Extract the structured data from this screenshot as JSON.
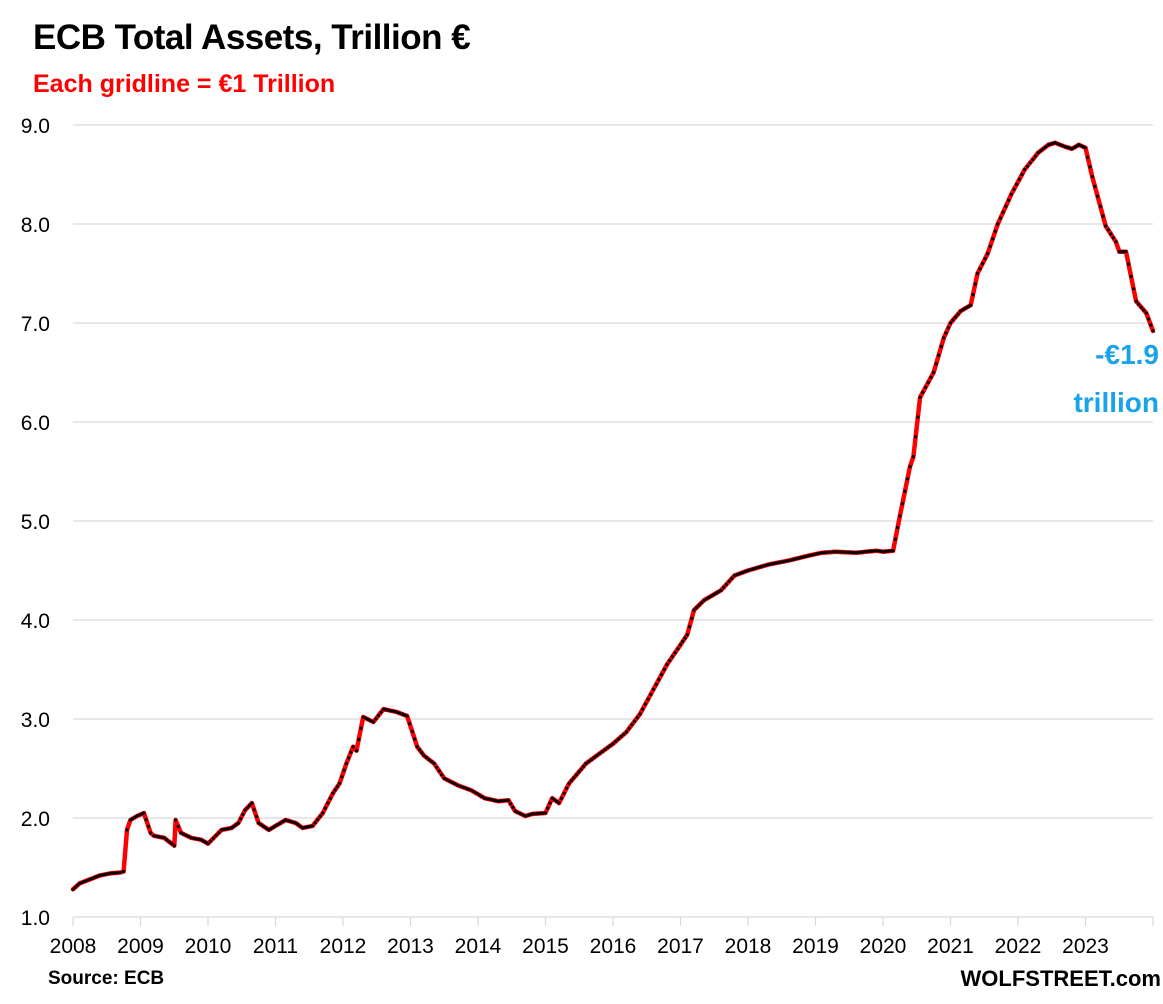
{
  "chart_data": {
    "type": "line",
    "title": "ECB Total Assets, Trillion €",
    "subtitle": "Each gridline = €1 Trillion",
    "xlabel": "",
    "ylabel": "",
    "ylim": [
      1.0,
      9.0
    ],
    "xlim": [
      2008,
      2024
    ],
    "yticks": [
      "1.0",
      "2.0",
      "3.0",
      "4.0",
      "5.0",
      "6.0",
      "7.0",
      "8.0",
      "9.0"
    ],
    "xticks": [
      "2008",
      "2009",
      "2010",
      "2011",
      "2012",
      "2013",
      "2014",
      "2015",
      "2016",
      "2017",
      "2018",
      "2019",
      "2020",
      "2021",
      "2022",
      "2023"
    ],
    "grid": true,
    "series": [
      {
        "name": "ECB Total Assets",
        "color": "#ff0000",
        "marker_color": "#000000",
        "x": [
          2008.0,
          2008.1,
          2008.25,
          2008.4,
          2008.55,
          2008.7,
          2008.75,
          2008.8,
          2008.85,
          2008.95,
          2009.05,
          2009.15,
          2009.2,
          2009.35,
          2009.5,
          2009.52,
          2009.6,
          2009.75,
          2009.9,
          2010.0,
          2010.2,
          2010.35,
          2010.45,
          2010.55,
          2010.65,
          2010.75,
          2010.9,
          2011.0,
          2011.15,
          2011.3,
          2011.4,
          2011.55,
          2011.7,
          2011.85,
          2011.95,
          2012.05,
          2012.15,
          2012.2,
          2012.3,
          2012.45,
          2012.6,
          2012.8,
          2012.95,
          2013.1,
          2013.2,
          2013.35,
          2013.5,
          2013.7,
          2013.9,
          2014.1,
          2014.3,
          2014.45,
          2014.55,
          2014.7,
          2014.8,
          2015.0,
          2015.1,
          2015.2,
          2015.35,
          2015.6,
          2015.8,
          2016.0,
          2016.2,
          2016.4,
          2016.6,
          2016.8,
          2017.0,
          2017.1,
          2017.2,
          2017.35,
          2017.6,
          2017.8,
          2018.0,
          2018.3,
          2018.6,
          2018.9,
          2019.1,
          2019.3,
          2019.6,
          2019.9,
          2020.0,
          2020.15,
          2020.25,
          2020.4,
          2020.45,
          2020.55,
          2020.75,
          2020.9,
          2021.0,
          2021.15,
          2021.3,
          2021.4,
          2021.55,
          2021.7,
          2021.9,
          2022.1,
          2022.3,
          2022.45,
          2022.55,
          2022.7,
          2022.8,
          2022.9,
          2023.0,
          2023.1,
          2023.3,
          2023.45,
          2023.5,
          2023.6,
          2023.75,
          2023.9,
          2024.0
        ],
        "values": [
          1.28,
          1.34,
          1.38,
          1.42,
          1.44,
          1.45,
          1.46,
          1.88,
          1.98,
          2.02,
          2.05,
          1.85,
          1.82,
          1.8,
          1.72,
          1.98,
          1.85,
          1.8,
          1.78,
          1.74,
          1.88,
          1.9,
          1.95,
          2.08,
          2.15,
          1.95,
          1.88,
          1.92,
          1.98,
          1.95,
          1.9,
          1.92,
          2.05,
          2.25,
          2.35,
          2.55,
          2.72,
          2.68,
          3.02,
          2.97,
          3.1,
          3.07,
          3.03,
          2.72,
          2.63,
          2.55,
          2.4,
          2.33,
          2.28,
          2.2,
          2.17,
          2.18,
          2.07,
          2.02,
          2.04,
          2.05,
          2.2,
          2.15,
          2.35,
          2.55,
          2.65,
          2.75,
          2.87,
          3.05,
          3.3,
          3.55,
          3.75,
          3.85,
          4.1,
          4.2,
          4.3,
          4.45,
          4.5,
          4.56,
          4.6,
          4.65,
          4.68,
          4.69,
          4.68,
          4.7,
          4.69,
          4.7,
          5.05,
          5.55,
          5.65,
          6.25,
          6.5,
          6.85,
          7.0,
          7.12,
          7.18,
          7.5,
          7.7,
          8.0,
          8.3,
          8.55,
          8.72,
          8.8,
          8.82,
          8.78,
          8.76,
          8.8,
          8.77,
          8.48,
          7.98,
          7.82,
          7.72,
          7.72,
          7.22,
          7.1,
          6.92
        ]
      }
    ],
    "annotations": [
      {
        "text_line1": "-€1.9",
        "text_line2": "trillion",
        "color": "#1aa3e8"
      }
    ]
  },
  "footer": {
    "source": "Source: ECB",
    "brand": "WOLFSTREET.com"
  }
}
